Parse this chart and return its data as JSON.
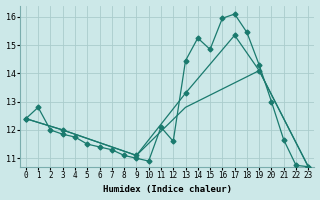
{
  "xlabel": "Humidex (Indice chaleur)",
  "bg_color": "#cce8e8",
  "grid_color": "#aacccc",
  "line_color": "#1a7a6e",
  "xlim": [
    -0.5,
    23.5
  ],
  "ylim": [
    10.7,
    16.4
  ],
  "xticks": [
    0,
    1,
    2,
    3,
    4,
    5,
    6,
    7,
    8,
    9,
    10,
    11,
    12,
    13,
    14,
    15,
    16,
    17,
    18,
    19,
    20,
    21,
    22,
    23
  ],
  "yticks": [
    11,
    12,
    13,
    14,
    15,
    16
  ],
  "line1_x": [
    0,
    1,
    2,
    3,
    4,
    5,
    6,
    7,
    8,
    9,
    10,
    11,
    12,
    13,
    14,
    15,
    16,
    17,
    18,
    19,
    20,
    21,
    22,
    23
  ],
  "line1_y": [
    12.4,
    12.8,
    12.0,
    11.85,
    11.75,
    11.5,
    11.4,
    11.3,
    11.1,
    11.0,
    10.9,
    12.1,
    11.6,
    14.45,
    15.25,
    14.85,
    15.95,
    16.1,
    15.45,
    14.3,
    13.0,
    11.65,
    10.75,
    10.7
  ],
  "line2_x": [
    0,
    3,
    9,
    13,
    17,
    19,
    23
  ],
  "line2_y": [
    12.4,
    12.0,
    11.1,
    13.3,
    15.35,
    14.1,
    10.7
  ],
  "line3_x": [
    0,
    3,
    9,
    13,
    19,
    23
  ],
  "line3_y": [
    12.4,
    12.0,
    11.1,
    12.8,
    14.1,
    10.7
  ]
}
